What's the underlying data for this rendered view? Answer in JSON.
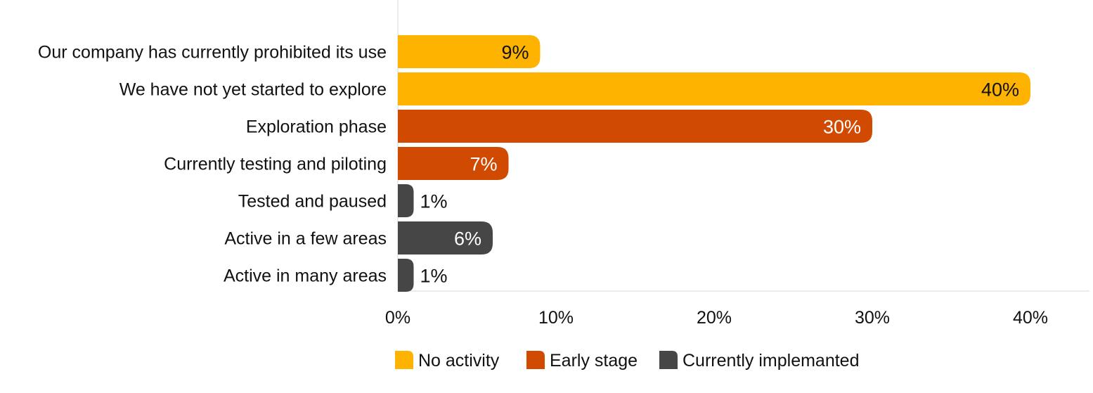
{
  "chart_data": {
    "type": "bar",
    "orientation": "horizontal",
    "categories": [
      "Our company has currently prohibited its use",
      "We have not yet started to explore",
      "Exploration phase",
      "Currently testing and piloting",
      "Tested and paused",
      "Active in a few areas",
      "Active in many areas"
    ],
    "values": [
      9,
      40,
      30,
      7,
      1,
      6,
      1
    ],
    "value_labels": [
      "9%",
      "40%",
      "30%",
      "7%",
      "1%",
      "6%",
      "1%"
    ],
    "bar_group": [
      0,
      0,
      1,
      1,
      2,
      2,
      2
    ],
    "series": [
      {
        "name": "No activity",
        "color": "#FDB300"
      },
      {
        "name": "Early stage",
        "color": "#D04A02"
      },
      {
        "name": "Currently implemanted",
        "color": "#464646"
      }
    ],
    "xlim": [
      0,
      42
    ],
    "xticks": [
      0,
      10,
      20,
      30,
      40
    ],
    "xtick_labels": [
      "0%",
      "10%",
      "20%",
      "30%",
      "40%"
    ],
    "grid": false,
    "legend": "bottom-center",
    "title": "",
    "xlabel": "",
    "ylabel": ""
  }
}
